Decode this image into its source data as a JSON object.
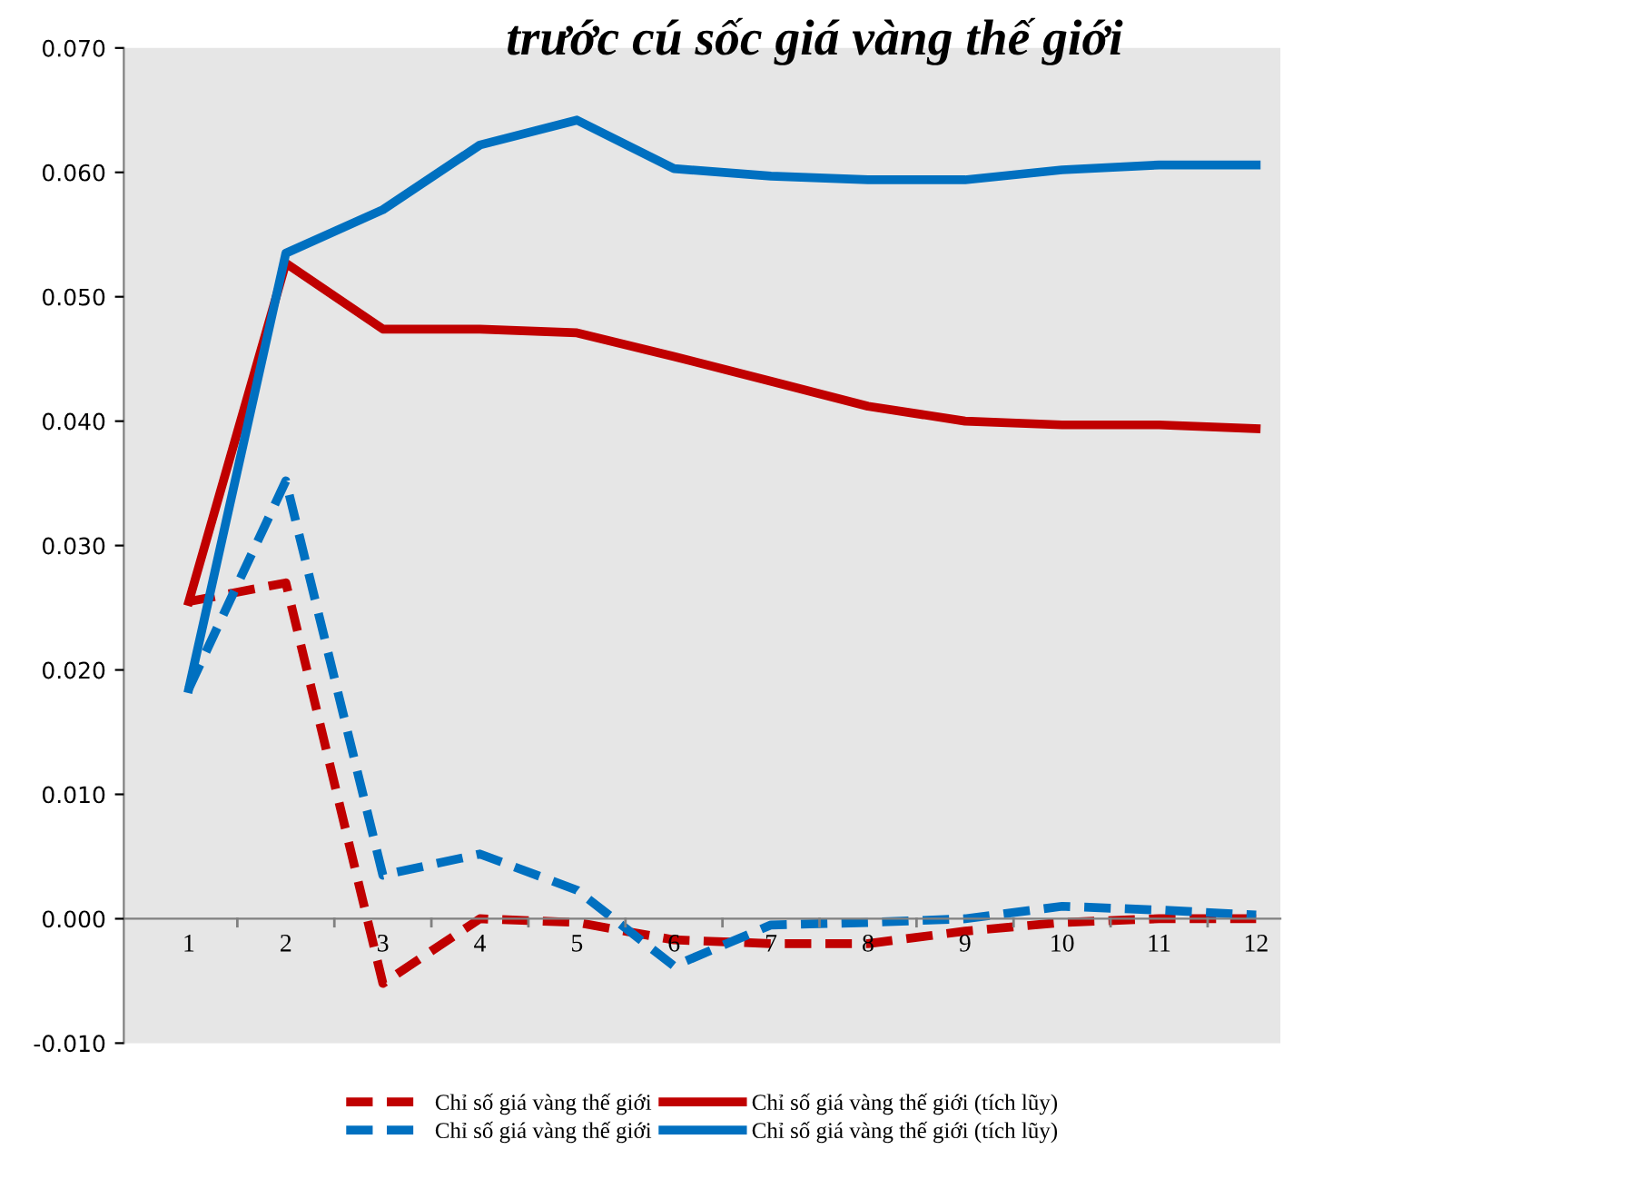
{
  "chart_data": {
    "type": "line",
    "title": "trước cú sốc giá vàng thế giới",
    "categories": [
      "1",
      "2",
      "3",
      "4",
      "5",
      "6",
      "7",
      "8",
      "9",
      "10",
      "11",
      "12"
    ],
    "ylim": [
      -0.01,
      0.07
    ],
    "yticks": [
      {
        "value": -0.01,
        "label": "-0.010"
      },
      {
        "value": 0,
        "label": "0.000"
      },
      {
        "value": 0.01,
        "label": "0.010"
      },
      {
        "value": 0.02,
        "label": "0.020"
      },
      {
        "value": 0.03,
        "label": "0.030"
      },
      {
        "value": 0.04,
        "label": "0.040"
      },
      {
        "value": 0.05,
        "label": "0.050"
      },
      {
        "value": 0.06,
        "label": "0.060"
      },
      {
        "value": 0.07,
        "label": "0.070"
      }
    ],
    "grid": false,
    "legend": "bottom",
    "marker": "none",
    "series": [
      {
        "name": "Chỉ số giá vàng thế giới",
        "color": "#c00000",
        "line_style": "dashed",
        "values": [
          0.0255,
          0.027,
          -0.0052,
          0.0,
          -0.0003,
          -0.0017,
          -0.002,
          -0.002,
          -0.001,
          -0.0003,
          0.0,
          0.0
        ]
      },
      {
        "name": "Chỉ số giá vàng thế giới (tích lũy)",
        "color": "#c00000",
        "line_style": "solid",
        "values": [
          0.0255,
          0.0527,
          0.0474,
          0.0474,
          0.0471,
          0.0452,
          0.0432,
          0.0412,
          0.04,
          0.0397,
          0.0397,
          0.0394
        ]
      },
      {
        "name": "Chỉ số giá vàng thế giới",
        "color": "#0070c0",
        "line_style": "dashed",
        "values": [
          0.0185,
          0.0352,
          0.0035,
          0.0052,
          0.0023,
          -0.0038,
          -0.0005,
          -0.0003,
          0.0,
          0.001,
          0.0007,
          0.0003
        ]
      },
      {
        "name": "Chỉ số giá vàng thế giới (tích lũy)",
        "color": "#0070c0",
        "line_style": "solid",
        "values": [
          0.0185,
          0.0535,
          0.057,
          0.0622,
          0.0642,
          0.0603,
          0.0597,
          0.0594,
          0.0594,
          0.0602,
          0.0606,
          0.0606
        ]
      }
    ]
  }
}
